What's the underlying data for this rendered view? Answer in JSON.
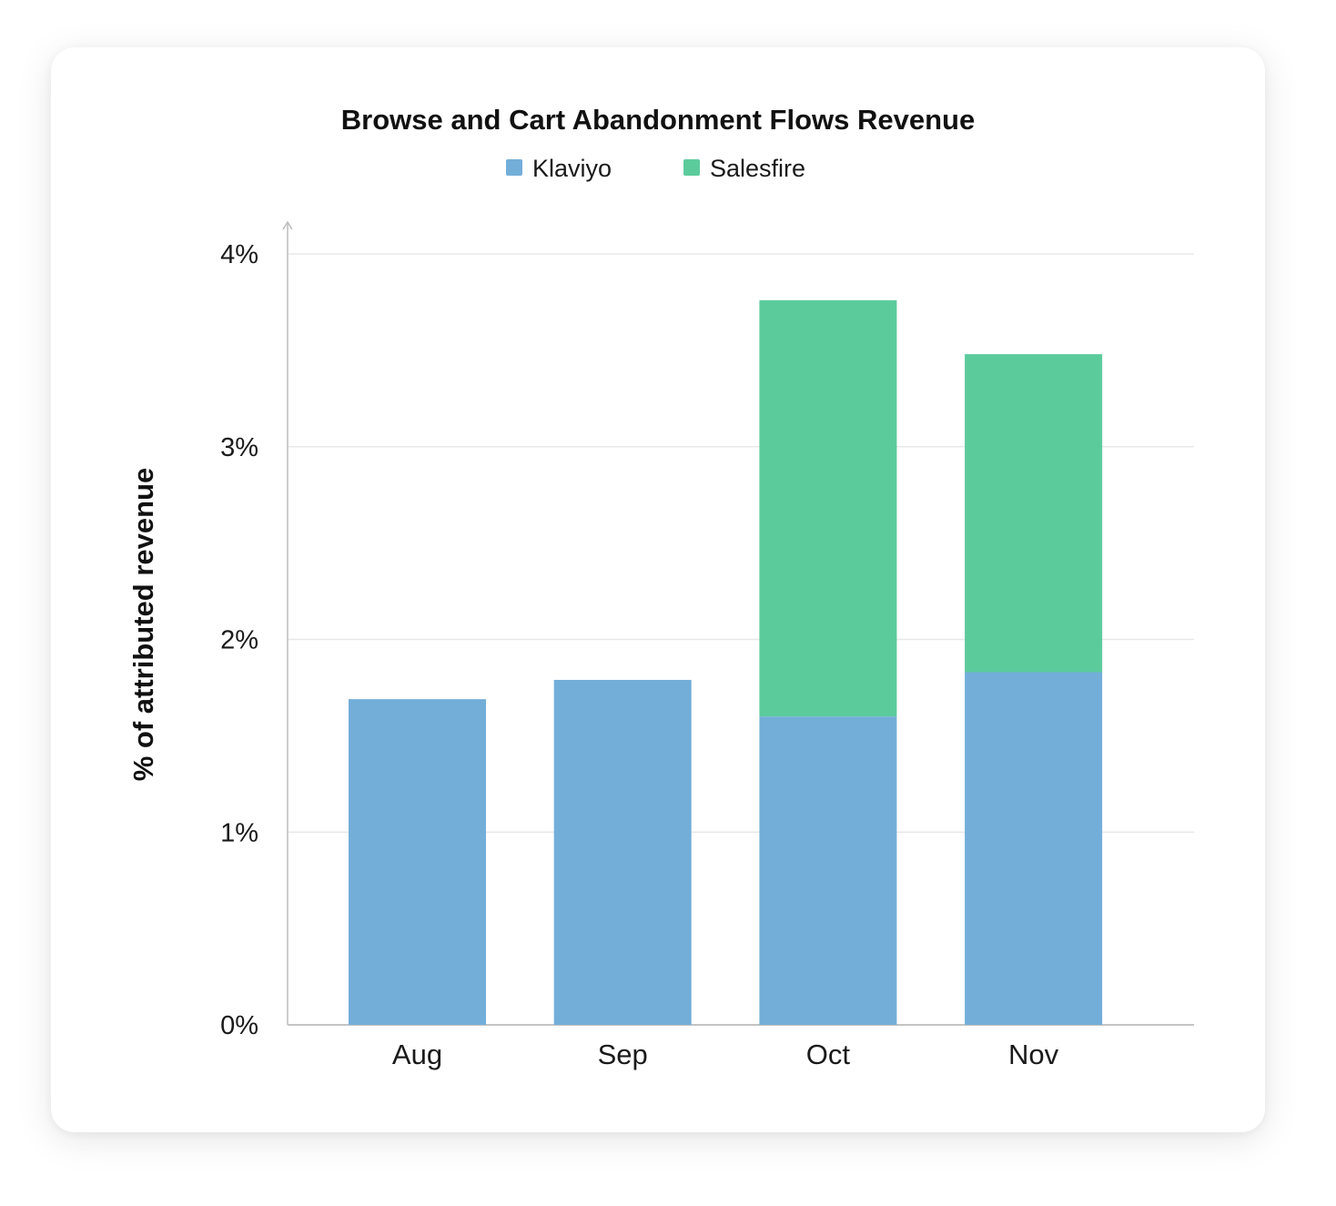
{
  "chart_data": {
    "type": "bar",
    "stacked": true,
    "title": "Browse and Cart Abandonment Flows Revenue",
    "xlabel": "",
    "ylabel": "% of attributed revenue",
    "categories": [
      "Aug",
      "Sep",
      "Oct",
      "Nov"
    ],
    "series": [
      {
        "name": "Klaviyo",
        "color": "#73aed9",
        "values": [
          1.69,
          1.79,
          1.6,
          1.83
        ]
      },
      {
        "name": "Salesfire",
        "color": "#5ccb9c",
        "values": [
          0,
          0,
          2.16,
          1.65
        ]
      }
    ],
    "ylim": [
      0,
      4
    ],
    "yticks": [
      0,
      1,
      2,
      3,
      4
    ],
    "ytick_labels": [
      "0%",
      "1%",
      "2%",
      "3%",
      "4%"
    ],
    "grid": true,
    "legend_placement": "top-center"
  }
}
